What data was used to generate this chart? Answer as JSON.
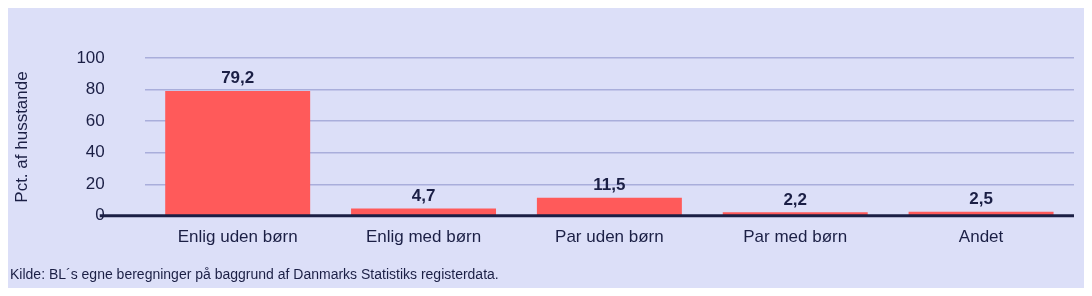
{
  "chart_data": {
    "type": "bar",
    "ylabel": "Pct. af husstande",
    "categories": [
      "Enlig uden børn",
      "Enlig med børn",
      "Par uden børn",
      "Par med børn",
      "Andet"
    ],
    "values": [
      79.2,
      4.7,
      11.5,
      2.2,
      2.5
    ],
    "color": "#ff5a5a",
    "value_labels": [
      "79,2",
      "4,7",
      "11,5",
      "2,2",
      "2,5"
    ],
    "ylim": [
      0,
      100
    ],
    "yticks": [
      0,
      20,
      40,
      60,
      80,
      100
    ],
    "grid": "y",
    "legend": false,
    "annotations": [
      "Kilde: BL´s egne beregninger på baggrund af Danmarks Statistiks registerdata."
    ]
  }
}
